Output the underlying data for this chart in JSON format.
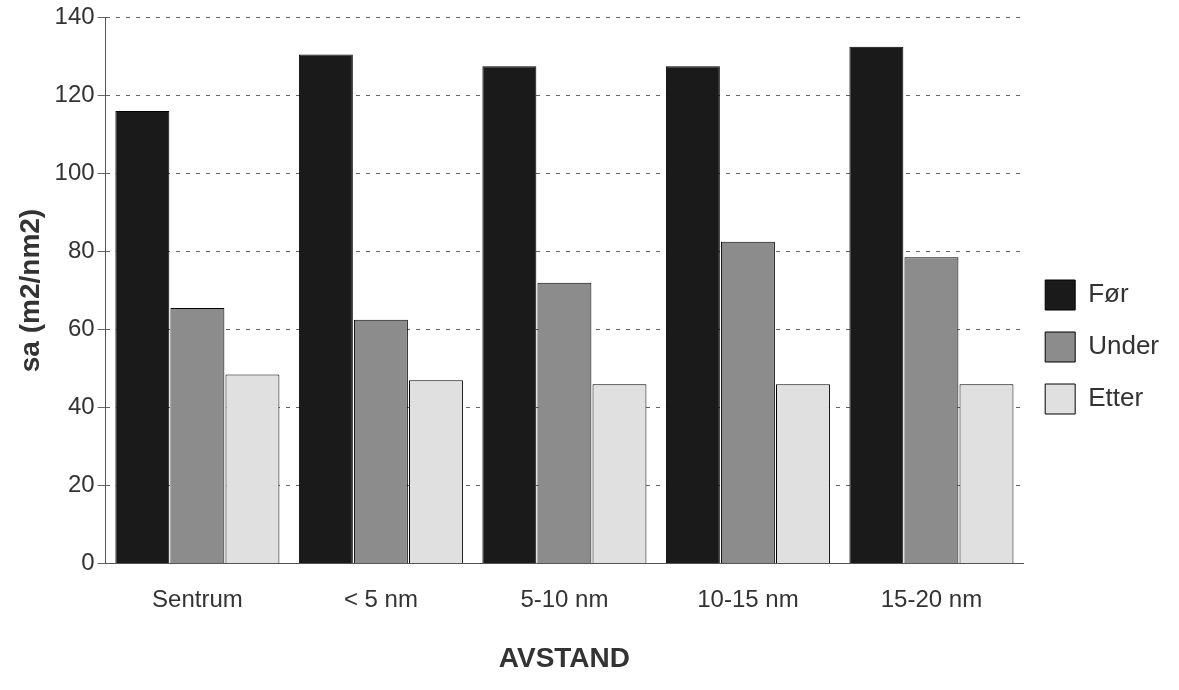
{
  "chart_data": {
    "type": "bar",
    "xlabel": "AVSTAND",
    "ylabel": "sa (m2/nm2)",
    "categories": [
      "Sentrum",
      "< 5 nm",
      "5-10 nm",
      "10-15 nm",
      "15-20 nm"
    ],
    "series": [
      {
        "name": "Før",
        "color": "#1a1a1a",
        "values": [
          116,
          130.5,
          127.5,
          127.5,
          132.5
        ]
      },
      {
        "name": "Under",
        "color": "#8c8c8c",
        "values": [
          65.5,
          62.5,
          72,
          82.5,
          78.5
        ]
      },
      {
        "name": "Etter",
        "color": "#e0e0e0",
        "values": [
          48.5,
          47,
          46,
          46,
          46
        ]
      }
    ],
    "ylim": [
      0,
      140
    ],
    "yticks": [
      0,
      20,
      40,
      60,
      80,
      100,
      120,
      140
    ],
    "grid": "y",
    "legend": "right"
  }
}
